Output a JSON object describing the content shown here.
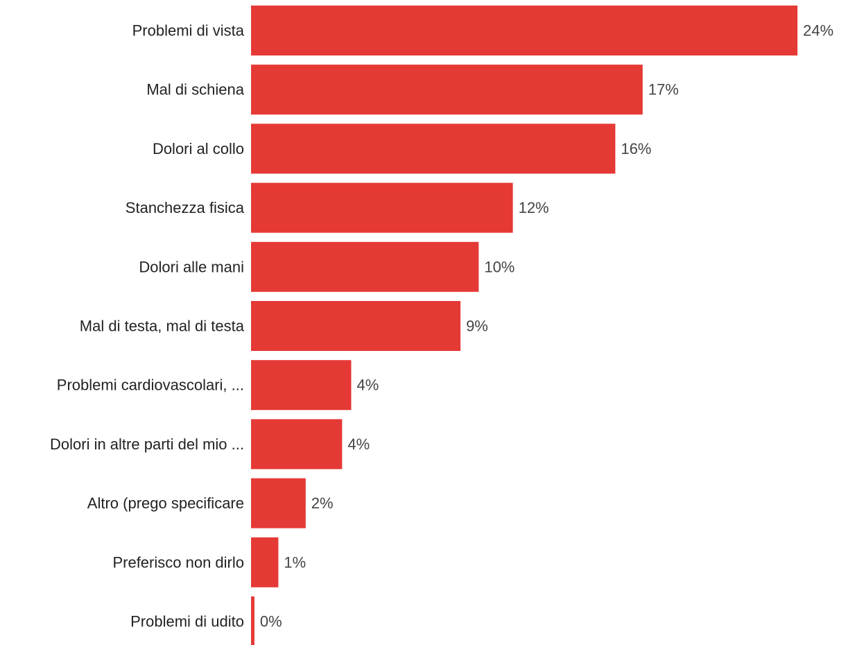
{
  "chart_data": {
    "type": "bar",
    "orientation": "horizontal",
    "categories": [
      "Problemi di vista",
      "Mal di schiena",
      "Dolori al collo",
      "Stanchezza fisica",
      "Dolori alle mani",
      "Mal di testa, mal di testa",
      "Problemi cardiovascolari, ...",
      "Dolori in altre parti del mio ...",
      "Altro (prego specificare",
      "Preferisco non dirlo",
      "Problemi di udito"
    ],
    "values": [
      24,
      17.2,
      16,
      11.5,
      10,
      9.2,
      4.4,
      4,
      2.4,
      1.2,
      0.15
    ],
    "value_labels": [
      "24%",
      "17%",
      "16%",
      "12%",
      "10%",
      "9%",
      "4%",
      "4%",
      "2%",
      "1%",
      "0%"
    ],
    "xlim": [
      0,
      24
    ],
    "grid": false,
    "legend": "none",
    "bar_color": "#e53935"
  }
}
